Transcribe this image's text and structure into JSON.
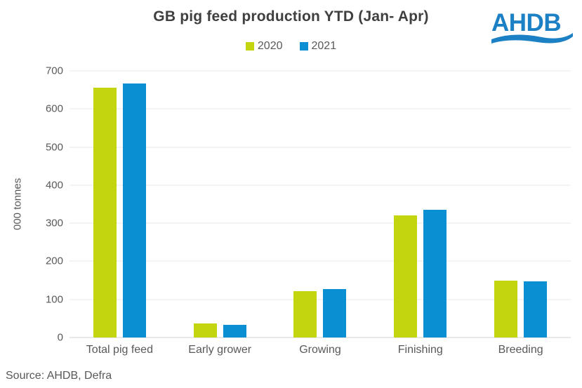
{
  "title": "GB pig feed production YTD (Jan- Apr)",
  "logo": {
    "text": "AHDB"
  },
  "source": "Source: AHDB, Defra",
  "chart_data": {
    "type": "bar",
    "title": "GB pig feed production YTD (Jan- Apr)",
    "categories": [
      "Total pig feed",
      "Early grower",
      "Growing",
      "Finishing",
      "Breeding"
    ],
    "series": [
      {
        "name": "2020",
        "color": "#C3D50E",
        "values": [
          655,
          36,
          122,
          320,
          150
        ]
      },
      {
        "name": "2021",
        "color": "#0A90D2",
        "values": [
          666,
          34,
          127,
          335,
          148
        ]
      }
    ],
    "xlabel": "",
    "ylabel": "000 tonnes",
    "ylim": [
      0,
      700
    ],
    "yticks": [
      0,
      100,
      200,
      300,
      400,
      500,
      600,
      700
    ],
    "grid": true,
    "legend_position": "top"
  },
  "colors": {
    "logo_blue": "#1C80C4",
    "title_text": "#3F3F3F",
    "axis_text": "#595959",
    "gridline": "#E8E8E8",
    "axis_line": "#D0D0D0",
    "background": "#FFFFFF"
  }
}
